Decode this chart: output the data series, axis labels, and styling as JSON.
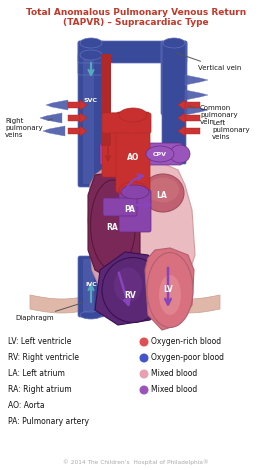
{
  "title_line1": "Total Anomalous Pulmonary Venous Return",
  "title_line2": "(TAPVR) – Supracardiac Type",
  "title_color": "#c0392b",
  "bg_color": "#ffffff",
  "legend_items_left": [
    "LV: Left ventricle",
    "RV: Right ventricle",
    "LA: Left atrium",
    "RA: Right atrium",
    "AO: Aorta",
    "PA: Pulmonary artery"
  ],
  "legend_items_right": [
    "Oxygen-rich blood",
    "Oxygen-poor blood",
    "Mixed blood",
    "Mixed blood"
  ],
  "legend_colors": [
    "#e05050",
    "#4455cc",
    "#e8a0b0",
    "#9955bb"
  ],
  "copyright": "© 2014 The Children’s  Hospital of Philadelphia®",
  "colors": {
    "dark_blue": "#3a4a9a",
    "med_blue": "#6070bb",
    "light_blue": "#9aaad8",
    "svc_blue": "#4a5aaa",
    "red_dark": "#b02828",
    "red_med": "#cc3333",
    "red_light": "#e06868",
    "pink_light": "#f0c0c8",
    "pink_body": "#f2d0cc",
    "body_tan": "#e8c4b4",
    "ra_color": "#7a2858",
    "rv_color": "#5a2875",
    "lv_color": "#d87080",
    "la_color": "#c06070",
    "ao_red": "#c83030",
    "purple_dark": "#6a2888",
    "purple_med": "#8844aa",
    "purple_light": "#aa66cc",
    "cpv_purple": "#9955bb",
    "arrow_purple": "#8844bb",
    "arrow_cyan": "#55aabb",
    "heart_outer": "#e8b0b8",
    "diaphragm": "#e0b8aa"
  }
}
